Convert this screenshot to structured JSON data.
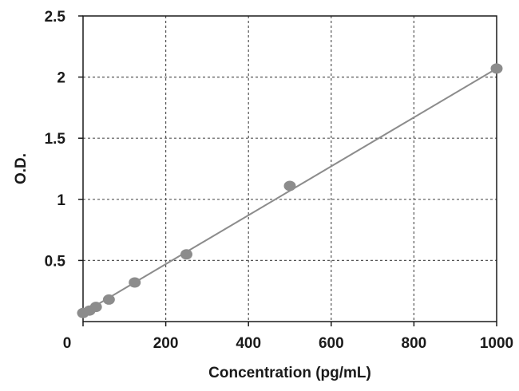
{
  "chart_data": {
    "type": "scatter",
    "title": "",
    "xlabel": "Concentration (pg/mL)",
    "ylabel": "O.D.",
    "xlim": [
      0,
      1000
    ],
    "ylim": [
      0,
      2.5
    ],
    "x_ticks": [
      "0",
      "200",
      "400",
      "600",
      "800",
      "1000"
    ],
    "y_ticks": [
      "0.5",
      "1",
      "1.5",
      "2",
      "2.5"
    ],
    "grid": true,
    "legend": "none",
    "series": [
      {
        "x": [
          0,
          15.6,
          31.25,
          62.5,
          125,
          250,
          500,
          1000
        ],
        "y": [
          0.07,
          0.09,
          0.12,
          0.18,
          0.32,
          0.55,
          1.11,
          2.07
        ],
        "marker_color": "#8c8c8c"
      }
    ],
    "trendline": {
      "type": "linear",
      "x_range": [
        0,
        1000
      ],
      "y_range": [
        0.07,
        2.07
      ],
      "color": "#8c8c8c"
    }
  }
}
